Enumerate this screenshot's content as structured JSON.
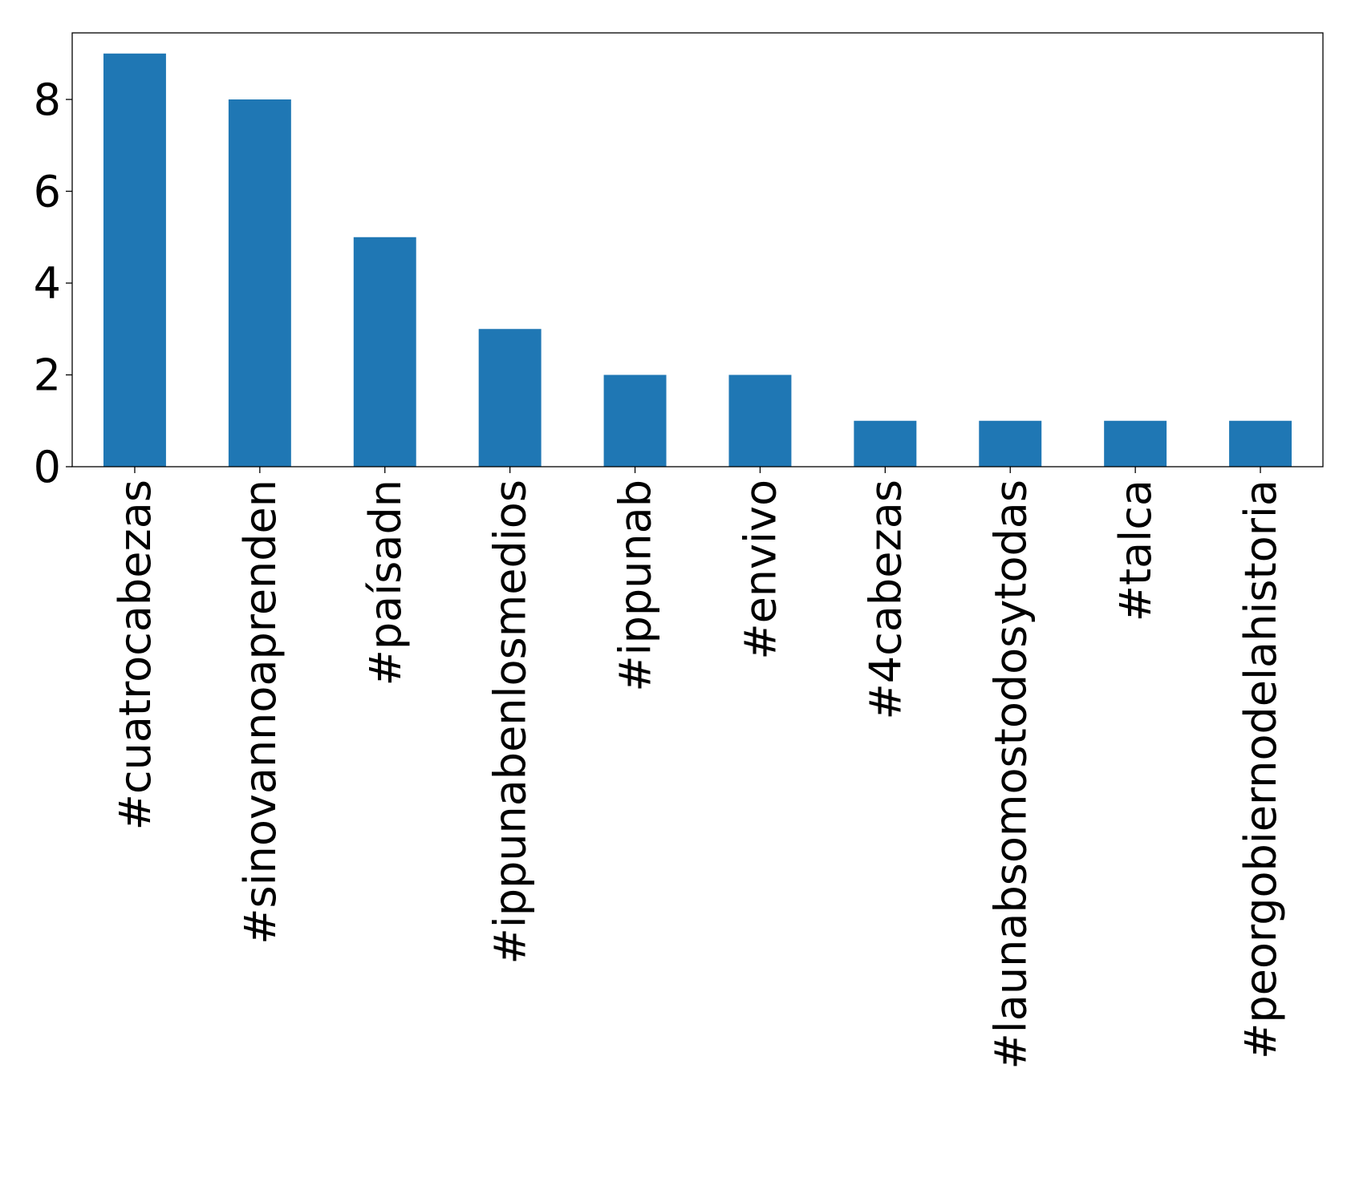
{
  "chart_data": {
    "type": "bar",
    "title": "",
    "xlabel": "",
    "ylabel": "",
    "categories": [
      "#cuatrocabezas",
      "#sinovannoaprenden",
      "#paísadn",
      "#ippunabenlosmedios",
      "#ippunab",
      "#envivo",
      "#4cabezas",
      "#launabsomostodosytodas",
      "#talca",
      "#peorgobiernodelahistoria"
    ],
    "values": [
      9,
      8,
      5,
      3,
      2,
      2,
      1,
      1,
      1,
      1
    ],
    "ylim": [
      0,
      9.45
    ],
    "yticks": [
      0,
      2,
      4,
      6,
      8
    ],
    "ytick_labels": [
      "0",
      "2",
      "4",
      "6",
      "8"
    ],
    "bar_color": "#1f77b4",
    "grid": false,
    "legend": "none"
  }
}
